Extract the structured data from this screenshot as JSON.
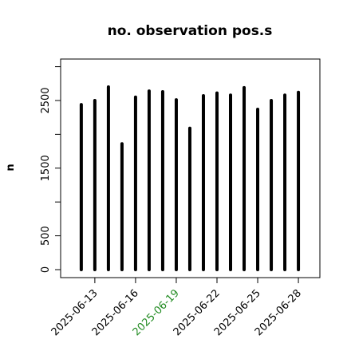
{
  "chart_data": {
    "type": "bar",
    "title": "no. observation pos.s",
    "y_label": "n",
    "x": [
      "2025-06-12",
      "2025-06-13",
      "2025-06-14",
      "2025-06-15",
      "2025-06-16",
      "2025-06-17",
      "2025-06-18",
      "2025-06-19",
      "2025-06-20",
      "2025-06-21",
      "2025-06-22",
      "2025-06-23",
      "2025-06-24",
      "2025-06-25",
      "2025-06-26",
      "2025-06-27",
      "2025-06-28"
    ],
    "values": [
      2440,
      2500,
      2700,
      1860,
      2550,
      2640,
      2630,
      2510,
      2090,
      2570,
      2610,
      2580,
      2690,
      2370,
      2500,
      2580,
      2620
    ],
    "color": "#000000",
    "xlim": [
      "2025-06-10T11:30",
      "2025-06-29T14:00"
    ],
    "xticks": [
      "2025-06-13",
      "2025-06-16",
      "2025-06-19",
      "2025-06-22",
      "2025-06-25",
      "2025-06-28"
    ],
    "highlight_xtick": "2025-06-19",
    "highlight_color": "#228b22",
    "ylim": [
      -118,
      3113
    ],
    "yticks": [
      0,
      500,
      1500,
      2500
    ],
    "yticks_unlabeled": [
      1000,
      2000,
      3000
    ]
  }
}
